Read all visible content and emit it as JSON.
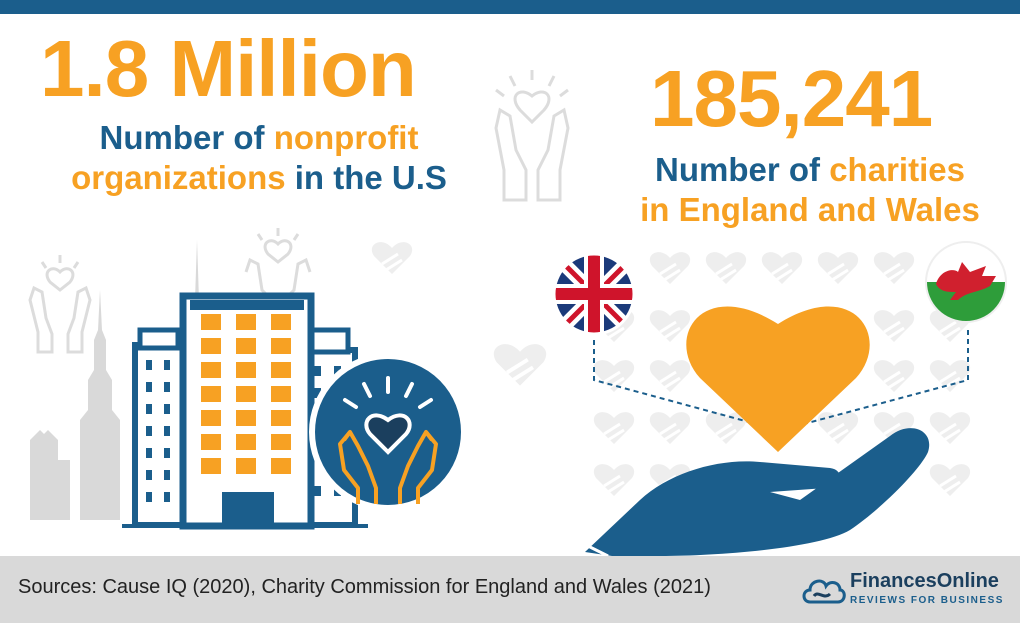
{
  "stats": {
    "left": {
      "number": "1.8 Million",
      "line1_prefix": "Number of ",
      "line1_highlight": "nonprofit",
      "line2_highlight": "organizations",
      "line2_suffix": " in the U.S"
    },
    "right": {
      "number": "185,241",
      "line1_prefix": "Number of ",
      "line1_highlight": "charities",
      "line2_highlight": "in England and Wales"
    }
  },
  "footer": {
    "sources": "Sources: Cause IQ (2020), Charity Commission for England and Wales (2021)",
    "brand_name": "FinancesOnline",
    "brand_tagline": "REVIEWS FOR BUSINESS"
  },
  "colors": {
    "orange": "#f7a123",
    "blue": "#1b5e8c",
    "gray": "#d9d9d9"
  },
  "icons": [
    "hands-heart-icon",
    "building-icon",
    "empire-state-icon",
    "uk-flag-icon",
    "wales-flag-icon",
    "heart-icon",
    "open-hand-icon",
    "cloud-logo-icon"
  ]
}
